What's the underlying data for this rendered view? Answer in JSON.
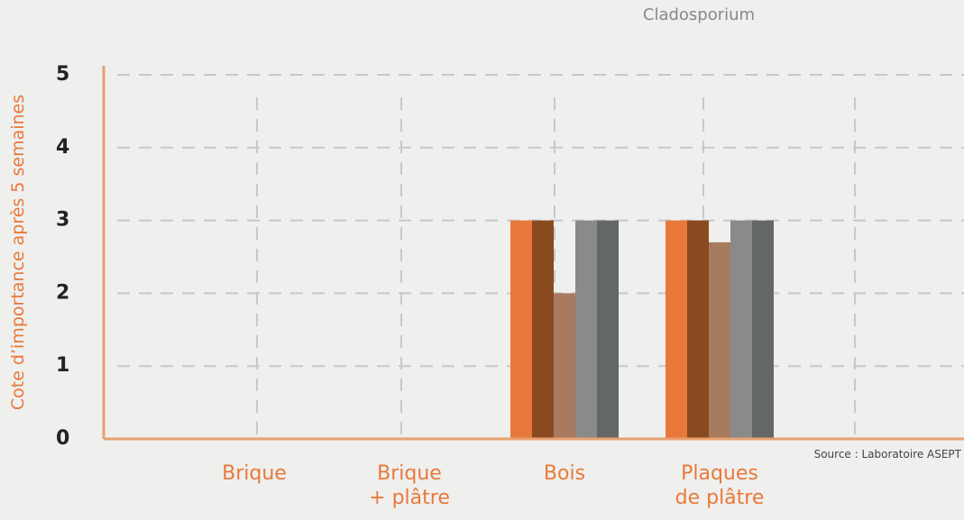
{
  "chart_data": {
    "type": "bar",
    "title": "Cladosporium",
    "y_label": "Cote d’importance après 5 semaines",
    "source": "Source : Laboratoire ASEPT",
    "categories": [
      "Brique",
      "Brique + plâtre",
      "Bois",
      "Plaques de plâtre"
    ],
    "series": [
      {
        "color": "#e8793a",
        "values": [
          0,
          0,
          3,
          3
        ]
      },
      {
        "color": "#8a4a1f",
        "values": [
          0,
          0,
          3,
          3
        ]
      },
      {
        "color": "#a87a5e",
        "values": [
          0,
          0,
          2,
          2.7
        ]
      },
      {
        "color": "#8a8a8a",
        "values": [
          0,
          0,
          3,
          3
        ]
      },
      {
        "color": "#646767",
        "values": [
          0,
          0,
          3,
          3
        ]
      }
    ],
    "ylim": [
      0,
      5
    ],
    "yticks": [
      0,
      1,
      2,
      3,
      4,
      5
    ],
    "grid": true
  }
}
